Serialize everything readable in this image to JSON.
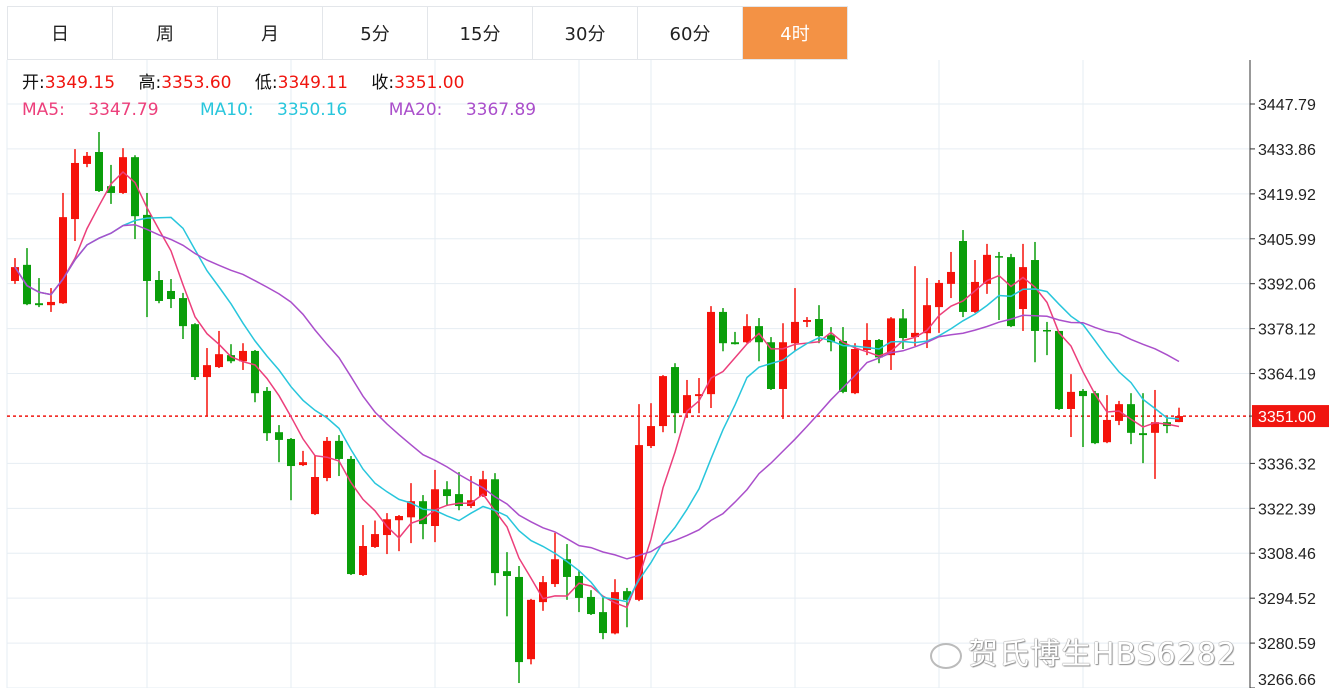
{
  "tabs": [
    {
      "label": "日",
      "active": false
    },
    {
      "label": "周",
      "active": false
    },
    {
      "label": "月",
      "active": false
    },
    {
      "label": "5分",
      "active": false
    },
    {
      "label": "15分",
      "active": false
    },
    {
      "label": "30分",
      "active": false
    },
    {
      "label": "60分",
      "active": false
    },
    {
      "label": "4时",
      "active": true
    }
  ],
  "ohlc_info": {
    "open_label": "开:",
    "open": "3349.15",
    "high_label": "高:",
    "high": "3353.60",
    "low_label": "低:",
    "low": "3349.11",
    "close_label": "收:",
    "close": "3351.00"
  },
  "ma_info": {
    "ma5_label": "MA5:",
    "ma5": "3347.79",
    "ma10_label": "MA10:",
    "ma10": "3350.16",
    "ma20_label": "MA20:",
    "ma20": "3367.89"
  },
  "colors": {
    "up": "#f5130b",
    "down": "#0a9e0a",
    "ma5": "#ec3f7b",
    "ma10": "#28c6dc",
    "ma20": "#aa4fcb",
    "accent": "#f39245",
    "current_price": "#f0150f"
  },
  "watermark": "贺氏博生HBS6282",
  "chart_data": {
    "type": "candlestick",
    "ylim": [
      3266.66,
      3447.79
    ],
    "y_ticks": [
      "3447.79",
      "3433.86",
      "3419.92",
      "3405.99",
      "3392.06",
      "3378.12",
      "3364.19",
      "3351.00",
      "3336.32",
      "3322.39",
      "3308.46",
      "3294.52",
      "3280.59",
      "3266.66"
    ],
    "current_price": 3351.0,
    "current_price_label": "3351.00",
    "grid": true,
    "moving_averages": [
      5,
      10,
      20
    ],
    "ohlc": [
      [
        3392.9,
        3400.0,
        3392.0,
        3397.2
      ],
      [
        3397.9,
        3403.1,
        3385.4,
        3385.7
      ],
      [
        3386.0,
        3393.8,
        3384.8,
        3385.4
      ],
      [
        3385.4,
        3390.7,
        3383.3,
        3386.4
      ],
      [
        3386.0,
        3420.2,
        3385.8,
        3412.7
      ],
      [
        3412.1,
        3433.8,
        3405.3,
        3429.5
      ],
      [
        3429.2,
        3432.9,
        3428.2,
        3431.7
      ],
      [
        3432.9,
        3439.1,
        3420.5,
        3420.8
      ],
      [
        3422.3,
        3428.9,
        3416.8,
        3420.2
      ],
      [
        3420.2,
        3434.1,
        3419.9,
        3431.3
      ],
      [
        3431.3,
        3431.9,
        3405.9,
        3413.0
      ],
      [
        3413.4,
        3420.2,
        3381.7,
        3392.9
      ],
      [
        3393.2,
        3396.0,
        3386.0,
        3386.7
      ],
      [
        3389.8,
        3393.5,
        3384.5,
        3387.3
      ],
      [
        3387.6,
        3389.2,
        3374.9,
        3378.9
      ],
      [
        3379.5,
        3379.8,
        3362.2,
        3363.1
      ],
      [
        3363.1,
        3372.1,
        3351.0,
        3366.8
      ],
      [
        3366.2,
        3377.4,
        3365.9,
        3370.2
      ],
      [
        3369.9,
        3373.3,
        3367.4,
        3368.0
      ],
      [
        3368.0,
        3373.6,
        3365.3,
        3371.2
      ],
      [
        3371.2,
        3371.5,
        3355.3,
        3358.1
      ],
      [
        3358.8,
        3360.0,
        3343.3,
        3345.7
      ],
      [
        3346.0,
        3348.2,
        3336.7,
        3343.6
      ],
      [
        3343.9,
        3344.2,
        3324.9,
        3335.5
      ],
      [
        3335.8,
        3340.2,
        3335.5,
        3336.7
      ],
      [
        3320.6,
        3338.9,
        3320.3,
        3332.1
      ],
      [
        3331.8,
        3344.5,
        3330.8,
        3343.3
      ],
      [
        3343.3,
        3345.1,
        3332.4,
        3337.7
      ],
      [
        3337.7,
        3338.6,
        3301.7,
        3302.0
      ],
      [
        3301.7,
        3317.2,
        3301.4,
        3310.7
      ],
      [
        3310.4,
        3318.6,
        3310.1,
        3314.4
      ],
      [
        3314.1,
        3320.9,
        3308.2,
        3319.0
      ],
      [
        3318.7,
        3320.3,
        3309.1,
        3320.0
      ],
      [
        3319.6,
        3330.2,
        3311.6,
        3324.6
      ],
      [
        3324.6,
        3326.5,
        3312.8,
        3317.5
      ],
      [
        3316.9,
        3334.3,
        3311.9,
        3328.3
      ],
      [
        3328.3,
        3330.8,
        3323.1,
        3326.2
      ],
      [
        3326.8,
        3333.6,
        3321.8,
        3323.1
      ],
      [
        3323.1,
        3332.4,
        3322.5,
        3324.9
      ],
      [
        3326.2,
        3334.0,
        3325.9,
        3331.4
      ],
      [
        3331.4,
        3333.3,
        3298.5,
        3302.3
      ],
      [
        3302.9,
        3308.8,
        3288.9,
        3301.4
      ],
      [
        3301.1,
        3304.5,
        3268.2,
        3274.7
      ],
      [
        3275.6,
        3294.3,
        3274.0,
        3294.0
      ],
      [
        3293.3,
        3301.4,
        3290.6,
        3299.5
      ],
      [
        3298.9,
        3314.8,
        3298.0,
        3306.6
      ],
      [
        3306.6,
        3311.3,
        3294.0,
        3301.1
      ],
      [
        3301.4,
        3303.2,
        3290.2,
        3294.6
      ],
      [
        3294.9,
        3297.0,
        3289.3,
        3289.6
      ],
      [
        3290.2,
        3294.9,
        3281.8,
        3283.7
      ],
      [
        3283.6,
        3300.4,
        3283.3,
        3296.4
      ],
      [
        3296.7,
        3297.7,
        3285.5,
        3294.0
      ],
      [
        3294.0,
        3354.7,
        3293.6,
        3342.0
      ],
      [
        3341.7,
        3355.0,
        3341.1,
        3347.9
      ],
      [
        3347.9,
        3363.7,
        3346.0,
        3363.4
      ],
      [
        3366.2,
        3367.4,
        3345.7,
        3351.9
      ],
      [
        3351.9,
        3362.2,
        3350.4,
        3357.5
      ],
      [
        3357.2,
        3362.8,
        3351.9,
        3357.8
      ],
      [
        3357.8,
        3385.1,
        3353.5,
        3383.3
      ],
      [
        3383.3,
        3384.5,
        3371.1,
        3373.6
      ],
      [
        3373.9,
        3377.1,
        3373.2,
        3373.3
      ],
      [
        3373.9,
        3382.6,
        3373.6,
        3378.9
      ],
      [
        3378.9,
        3381.4,
        3368.0,
        3373.9
      ],
      [
        3373.9,
        3375.5,
        3359.1,
        3359.4
      ],
      [
        3359.4,
        3379.8,
        3350.1,
        3373.9
      ],
      [
        3373.6,
        3390.7,
        3371.2,
        3380.2
      ],
      [
        3380.2,
        3381.7,
        3378.6,
        3380.8
      ],
      [
        3381.1,
        3385.4,
        3373.6,
        3375.8
      ],
      [
        3376.1,
        3378.6,
        3371.1,
        3373.9
      ],
      [
        3374.3,
        3378.6,
        3358.1,
        3358.5
      ],
      [
        3358.1,
        3373.6,
        3357.8,
        3371.8
      ],
      [
        3371.5,
        3379.8,
        3369.9,
        3374.6
      ],
      [
        3374.6,
        3374.9,
        3367.4,
        3369.2
      ],
      [
        3369.9,
        3381.7,
        3365.3,
        3381.3
      ],
      [
        3381.3,
        3384.2,
        3371.8,
        3375.2
      ],
      [
        3375.5,
        3397.5,
        3372.7,
        3376.8
      ],
      [
        3376.7,
        3393.8,
        3372.1,
        3385.4
      ],
      [
        3384.8,
        3393.2,
        3376.8,
        3392.3
      ],
      [
        3392.0,
        3401.9,
        3387.6,
        3395.7
      ],
      [
        3405.3,
        3408.7,
        3381.7,
        3383.3
      ],
      [
        3383.3,
        3399.4,
        3383.0,
        3392.6
      ],
      [
        3392.0,
        3404.4,
        3388.9,
        3401.0
      ],
      [
        3400.6,
        3401.9,
        3380.8,
        3400.3
      ],
      [
        3400.3,
        3401.3,
        3378.6,
        3378.9
      ],
      [
        3384.2,
        3404.4,
        3377.4,
        3397.2
      ],
      [
        3399.4,
        3405.0,
        3367.7,
        3377.4
      ],
      [
        3377.7,
        3380.2,
        3369.9,
        3377.4
      ],
      [
        3377.4,
        3377.4,
        3352.9,
        3353.2
      ],
      [
        3353.2,
        3364.0,
        3344.5,
        3358.5
      ],
      [
        3358.8,
        3359.4,
        3341.4,
        3357.2
      ],
      [
        3358.1,
        3358.8,
        3342.3,
        3342.6
      ],
      [
        3342.9,
        3357.5,
        3342.6,
        3349.8
      ],
      [
        3349.5,
        3355.7,
        3348.2,
        3354.7
      ],
      [
        3354.7,
        3358.1,
        3342.3,
        3345.8
      ],
      [
        3345.7,
        3358.1,
        3336.4,
        3345.1
      ],
      [
        3345.8,
        3359.1,
        3331.5,
        3349.1
      ],
      [
        3349.1,
        3350.7,
        3345.7,
        3347.9
      ],
      [
        3349.15,
        3353.6,
        3349.11,
        3351.0
      ]
    ]
  }
}
